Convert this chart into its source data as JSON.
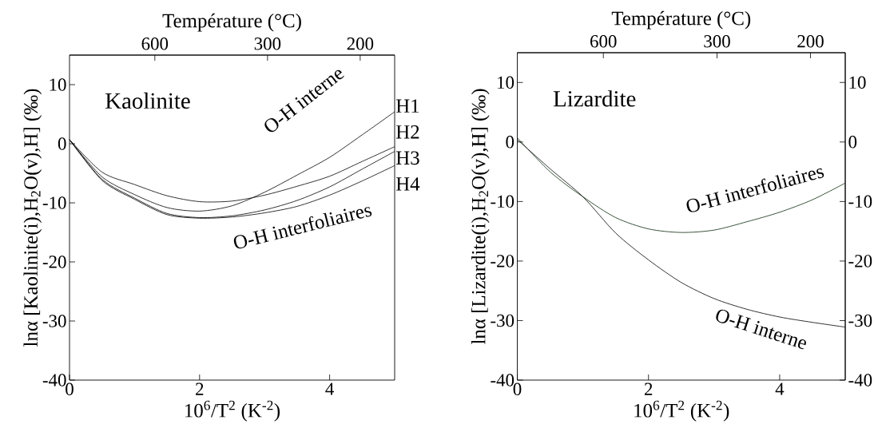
{
  "chart_data": [
    {
      "type": "line",
      "title": "Kaolinite",
      "xlabel": "10$^{6}$/T$^{2}$  (K$^{-2}$)",
      "ylabel": "lnα [Kaolinite(i),H$_{2}$O(v),H] (‰)",
      "x2label": "Température (°C)",
      "x": [
        0,
        0.5,
        1,
        1.5,
        2,
        2.5,
        3,
        3.5,
        4,
        4.5,
        5
      ],
      "series": [
        {
          "name": "H1",
          "color": "#000000",
          "values": [
            0.7,
            -5.6,
            -8.6,
            -10.8,
            -11.4,
            -10.5,
            -8.2,
            -5.3,
            -2.3,
            1.5,
            5.4
          ]
        },
        {
          "name": "H2",
          "color": "#000000",
          "values": [
            0.7,
            -4.8,
            -6.9,
            -8.8,
            -9.8,
            -9.7,
            -8.7,
            -7.2,
            -5.5,
            -3.0,
            -0.5
          ]
        },
        {
          "name": "H3",
          "color": "#000000",
          "values": [
            0.7,
            -6.0,
            -9.2,
            -11.8,
            -12.5,
            -12.2,
            -11.2,
            -9.6,
            -7.3,
            -4.3,
            -1.3
          ]
        },
        {
          "name": "H4",
          "color": "#000000",
          "values": [
            0.7,
            -6.2,
            -9.4,
            -12.0,
            -12.6,
            -12.4,
            -11.7,
            -10.6,
            -8.7,
            -6.3,
            -3.7
          ]
        }
      ],
      "xlim": [
        0,
        5
      ],
      "ylim": [
        -40,
        15
      ],
      "xticks": [
        0,
        2,
        4
      ],
      "yticks": [
        -40,
        -30,
        -20,
        -10,
        0,
        10
      ],
      "annotations": [
        "600",
        "300",
        "200",
        "O-H interne",
        "O-H interfoliaires"
      ]
    },
    {
      "type": "line",
      "title": "Lizardite",
      "xlabel": "10$^{6}$/T$^{2}$  (K$^{-2}$)",
      "ylabel": "lnα [Lizardite(i),H$_{2}$O(v),H]  (‰)",
      "x2label": "Température (°C)",
      "x": [
        0,
        0.5,
        1,
        1.5,
        2,
        2.5,
        3,
        3.5,
        4,
        4.5,
        5
      ],
      "series": [
        {
          "color": "#0b2a0b",
          "values": [
            0.7,
            -5.0,
            -9.2,
            -12.7,
            -14.6,
            -15.2,
            -14.8,
            -13.4,
            -11.8,
            -9.7,
            -6.9
          ]
        },
        {
          "color": "#000000",
          "values": [
            0.4,
            -4.5,
            -9.2,
            -15.3,
            -19.8,
            -23.6,
            -26.3,
            -28.1,
            -29.4,
            -30.3,
            -31.1
          ]
        }
      ],
      "xlim": [
        0,
        5
      ],
      "ylim": [
        -40,
        15
      ],
      "xticks": [
        0,
        2,
        4
      ],
      "yticks": [
        -40,
        -30,
        -20,
        -10,
        0,
        10
      ],
      "y2lim": [
        -40,
        15
      ],
      "y2ticks": [
        -40,
        -30,
        -20,
        -10,
        0,
        10
      ],
      "annotations": [
        "600",
        "300",
        "200",
        "O-H interfoliaires",
        "O-H interne"
      ]
    }
  ]
}
